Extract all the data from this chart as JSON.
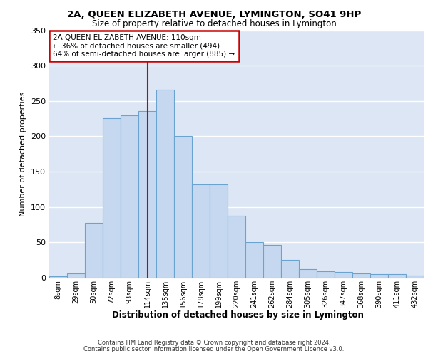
{
  "title1": "2A, QUEEN ELIZABETH AVENUE, LYMINGTON, SO41 9HP",
  "title2": "Size of property relative to detached houses in Lymington",
  "xlabel": "Distribution of detached houses by size in Lymington",
  "ylabel": "Number of detached properties",
  "footer1": "Contains HM Land Registry data © Crown copyright and database right 2024.",
  "footer2": "Contains public sector information licensed under the Open Government Licence v3.0.",
  "categories": [
    "8sqm",
    "29sqm",
    "50sqm",
    "72sqm",
    "93sqm",
    "114sqm",
    "135sqm",
    "156sqm",
    "178sqm",
    "199sqm",
    "220sqm",
    "241sqm",
    "262sqm",
    "284sqm",
    "305sqm",
    "326sqm",
    "347sqm",
    "368sqm",
    "390sqm",
    "411sqm",
    "432sqm"
  ],
  "values": [
    2,
    6,
    78,
    226,
    230,
    236,
    266,
    200,
    132,
    132,
    88,
    50,
    46,
    25,
    12,
    9,
    8,
    6,
    5,
    5,
    3
  ],
  "bar_color": "#c5d8f0",
  "bar_edge_color": "#6ba3d0",
  "bg_color": "#dce6f5",
  "grid_color": "#ffffff",
  "property_label": "2A QUEEN ELIZABETH AVENUE: 110sqm",
  "stat1": "← 36% of detached houses are smaller (494)",
  "stat2": "64% of semi-detached houses are larger (885) →",
  "vline_color": "#cc0000",
  "annotation_box_color": "#cc0000",
  "ylim": [
    0,
    350
  ],
  "yticks": [
    0,
    50,
    100,
    150,
    200,
    250,
    300,
    350
  ],
  "vline_x_index": 5.0
}
